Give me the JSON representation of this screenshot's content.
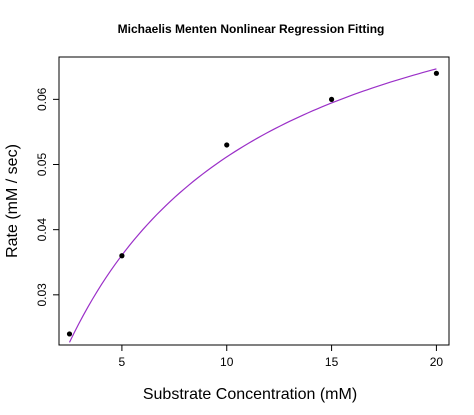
{
  "chart_data": {
    "type": "scatter",
    "title": "Michaelis Menten Nonlinear Regression Fitting",
    "xlabel": "Substrate Concentration (mM)",
    "ylabel": "Rate (mM / sec)",
    "xlim": [
      2.0,
      20.6
    ],
    "ylim": [
      0.0223,
      0.0665
    ],
    "x_ticks": [
      5,
      10,
      15,
      20
    ],
    "x_tick_labels": [
      "5",
      "10",
      "15",
      "20"
    ],
    "y_ticks": [
      0.03,
      0.04,
      0.05,
      0.06
    ],
    "y_tick_labels": [
      "0.03",
      "0.04",
      "0.05",
      "0.06"
    ],
    "grid": false,
    "legend": "none",
    "points": {
      "x": [
        2.5,
        5,
        10,
        15,
        20
      ],
      "y": [
        0.024,
        0.036,
        0.053,
        0.06,
        0.064
      ]
    },
    "fit_curve": {
      "model": "michaelis-menten",
      "vmax": 0.0879,
      "km": 7.18,
      "x_range": [
        2.5,
        20
      ]
    },
    "colors": {
      "points": "#000000",
      "fit_curve": "#9b30c8",
      "axis": "#000000"
    }
  }
}
